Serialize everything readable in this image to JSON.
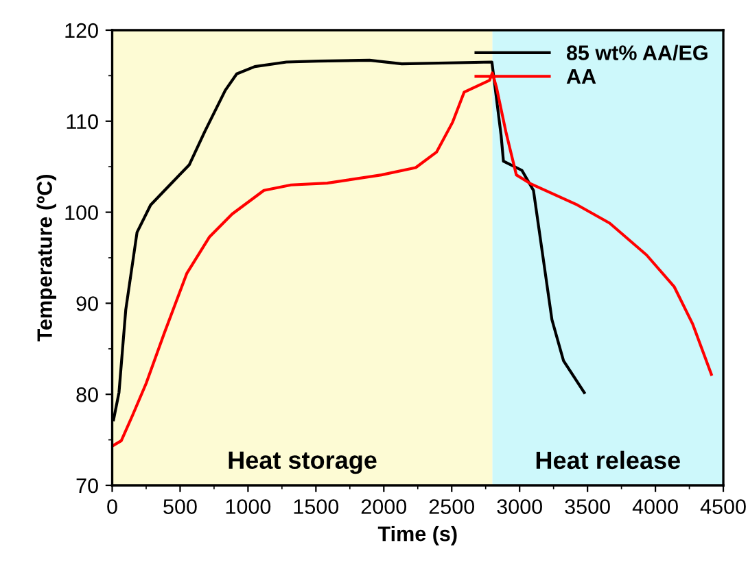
{
  "chart_data": {
    "type": "line",
    "xlabel": "Time (s)",
    "ylabel": "Temperature (ºC)",
    "xlim": [
      0,
      4500
    ],
    "xticks": [
      0,
      500,
      1000,
      1500,
      2000,
      2500,
      3000,
      3500,
      4000,
      4500
    ],
    "ylim": [
      70,
      120
    ],
    "yticks": [
      70,
      80,
      90,
      100,
      110,
      120
    ],
    "grid": false,
    "legend": "top right",
    "marker": "none",
    "line_style": "solid",
    "bands": [
      {
        "axis": "x",
        "from": 0,
        "to": 2800,
        "label": "Heat storage",
        "color": "#fdfbd4"
      },
      {
        "axis": "x",
        "from": 2800,
        "to": 4500,
        "label": "Heat release",
        "color": "#cdf8fb"
      }
    ],
    "series": [
      {
        "name": "85 wt% AA/EG",
        "color": "#000000",
        "x": [
          10,
          50,
          100,
          183,
          283,
          450,
          567,
          683,
          833,
          917,
          1050,
          1283,
          1517,
          1895,
          2133,
          2796,
          2864,
          2881,
          3017,
          3102,
          3170,
          3238,
          3323,
          3476
        ],
        "values": [
          77.2,
          80.2,
          89.3,
          97.8,
          100.8,
          103.4,
          105.2,
          108.9,
          113.4,
          115.2,
          116.0,
          116.5,
          116.6,
          116.7,
          116.3,
          116.5,
          108.4,
          105.6,
          104.6,
          102.4,
          95.3,
          88.2,
          83.7,
          80.2
        ]
      },
      {
        "name": "AA",
        "color": "#ff0000",
        "x": [
          10,
          67,
          150,
          250,
          383,
          550,
          717,
          883,
          1117,
          1317,
          1583,
          1983,
          2235,
          2388,
          2507,
          2592,
          2779,
          2799,
          2830,
          2898,
          2976,
          3085,
          3425,
          3663,
          3935,
          4139,
          4275,
          4412
        ],
        "values": [
          74.4,
          74.9,
          77.7,
          81.2,
          86.7,
          93.3,
          97.3,
          99.8,
          102.4,
          103.0,
          103.2,
          104.1,
          104.9,
          106.6,
          109.9,
          113.2,
          114.5,
          115.3,
          113.7,
          108.9,
          104.1,
          103.1,
          100.8,
          98.8,
          95.3,
          91.8,
          87.7,
          82.2
        ]
      }
    ]
  }
}
